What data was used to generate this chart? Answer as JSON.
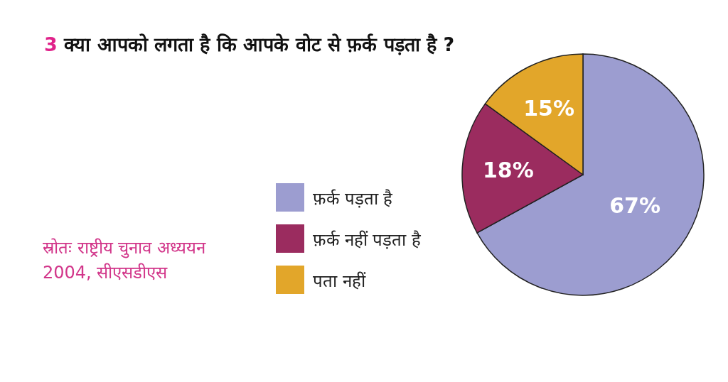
{
  "chart_data": {
    "type": "pie",
    "title": "3 क्या आपको लगता है कि आपके वोट से फ़र्क पड़ता है ?",
    "categories": [
      "फ़र्क पड़ता है",
      "फ़र्क नहीं पड़ता है",
      "पता नहीं"
    ],
    "values": [
      67,
      18,
      15
    ],
    "colors": [
      "#9c9dd0",
      "#9b2c5f",
      "#e2a62a"
    ],
    "value_labels": [
      "67%",
      "18%",
      "15%"
    ],
    "legend": "left",
    "annotations": [
      "स्रोतः राष्ट्रीय चुनाव अध्ययन 2004, सीएसडीएस"
    ]
  }
}
